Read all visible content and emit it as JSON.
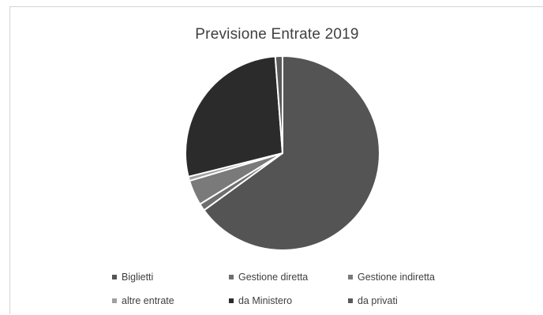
{
  "chart_data": {
    "type": "pie",
    "title": "Previsione Entrate 2019",
    "legend_position": "bottom",
    "slices": [
      {
        "label": "Biglietti",
        "value": 65.0,
        "color": "#545454"
      },
      {
        "label": "Gestione diretta",
        "value": 1.2,
        "color": "#6e6e6e"
      },
      {
        "label": "Gestione indiretta",
        "value": 4.2,
        "color": "#7a7a7a"
      },
      {
        "label": "altre entrate",
        "value": 0.7,
        "color": "#a0a0a0"
      },
      {
        "label": "da Ministero",
        "value": 27.7,
        "color": "#2b2b2b"
      },
      {
        "label": "da privati",
        "value": 1.2,
        "color": "#5a5a5a"
      }
    ]
  }
}
